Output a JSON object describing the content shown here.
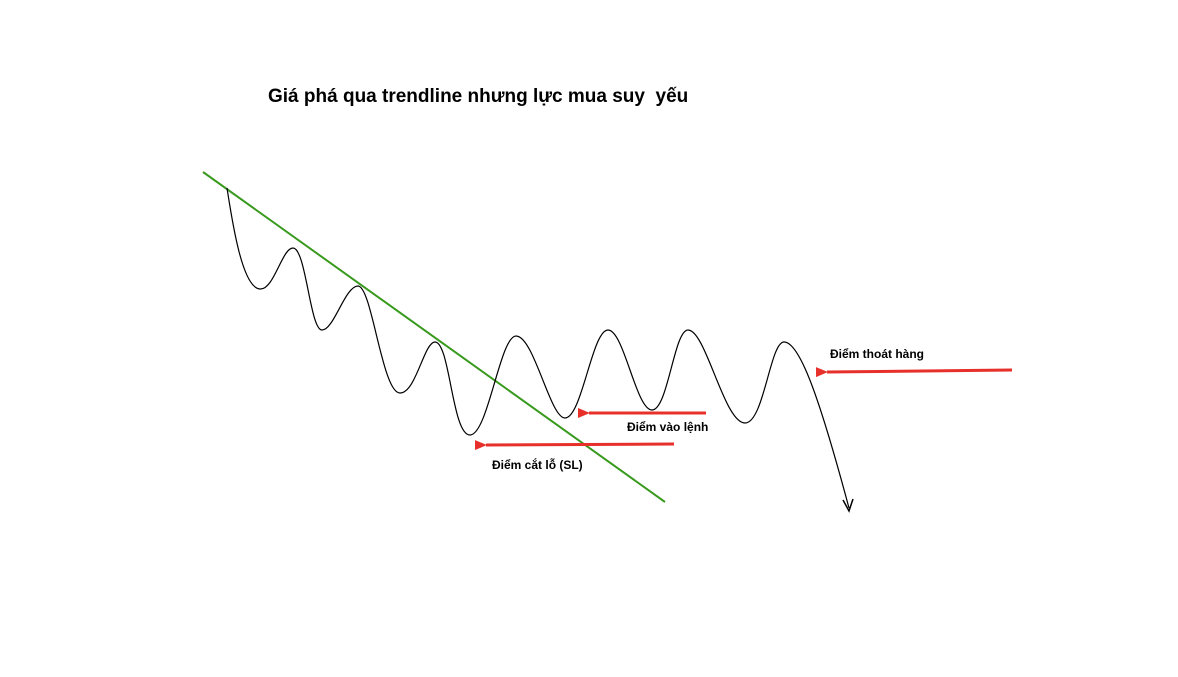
{
  "title": "Giá phá qua trendline nhưng lực mua suy  yếu",
  "labels": {
    "exit_point": "Điểm thoát hàng",
    "entry_point": "Điểm vào lệnh",
    "stop_loss": "Điểm cắt lỗ (SL)"
  },
  "colors": {
    "trendline": "#3a9a1f",
    "arrow": "#e8302a",
    "price": "#000000",
    "text": "#000000"
  },
  "icons": {
    "arrow": "left-arrow",
    "price_end": "down-arrowhead"
  }
}
